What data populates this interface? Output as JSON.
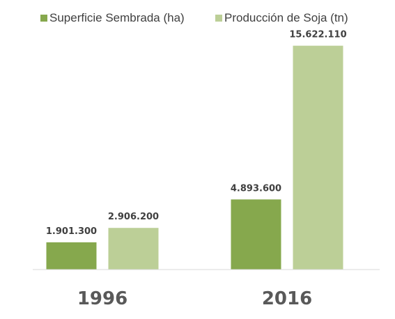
{
  "chart_data": {
    "type": "bar",
    "categories": [
      "1996",
      "2016"
    ],
    "series": [
      {
        "name": "Superficie Sembrada (ha)",
        "color": "#86a84d",
        "values": [
          1901300,
          4893600
        ],
        "labels": [
          "1.901.300",
          "4.893.600"
        ]
      },
      {
        "name": "Producción de Soja (tn)",
        "color": "#bccf97",
        "values": [
          2906200,
          15622110
        ],
        "labels": [
          "2.906.200",
          "15.622.110"
        ]
      }
    ],
    "ylim": [
      0,
      17500000
    ],
    "grid": false,
    "legend_position": "top",
    "title": "",
    "xlabel": "",
    "ylabel": ""
  }
}
